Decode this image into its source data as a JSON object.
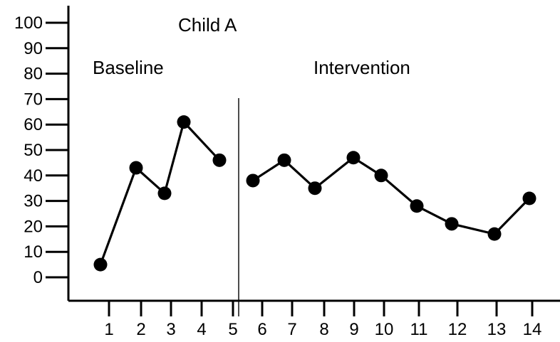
{
  "chart_data": {
    "type": "line",
    "title": "Child A",
    "phases": [
      {
        "label": "Baseline",
        "start": 1,
        "end": 5
      },
      {
        "label": "Intervention",
        "start": 6,
        "end": 14
      }
    ],
    "x_ticks": [
      1,
      2,
      3,
      4,
      5,
      6,
      7,
      8,
      9,
      10,
      11,
      12,
      13,
      14
    ],
    "y_ticks": [
      0,
      10,
      20,
      30,
      40,
      50,
      60,
      70,
      80,
      90,
      100
    ],
    "ylim": [
      0,
      100
    ],
    "grid": false,
    "series": [
      {
        "segments": [
          [
            {
              "x": 1,
              "y": 5
            },
            {
              "x": 2,
              "y": 43
            },
            {
              "x": 3,
              "y": 33
            },
            {
              "x": 4,
              "y": 61
            },
            {
              "x": 5,
              "y": 46
            }
          ],
          [
            {
              "x": 6,
              "y": 38
            },
            {
              "x": 7,
              "y": 46
            },
            {
              "x": 8,
              "y": 35
            },
            {
              "x": 9,
              "y": 47
            },
            {
              "x": 10,
              "y": 40
            },
            {
              "x": 11,
              "y": 28
            },
            {
              "x": 12,
              "y": 21
            },
            {
              "x": 13,
              "y": 17
            },
            {
              "x": 14,
              "y": 31
            }
          ]
        ]
      }
    ]
  }
}
